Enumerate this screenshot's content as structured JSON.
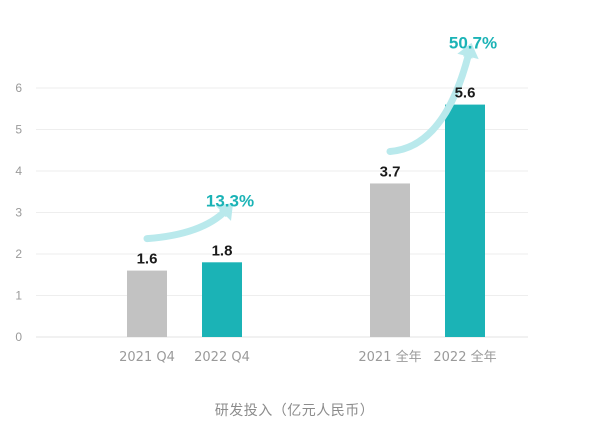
{
  "chart_data": {
    "type": "bar",
    "caption": "研发投入（亿元人民币）",
    "ylim": [
      0,
      6
    ],
    "y_ticks": [
      "0",
      "1",
      "2",
      "3",
      "4",
      "5",
      "6"
    ],
    "grid": true,
    "colors": {
      "previous": "#c2c2c2",
      "current": "#1bb3b6",
      "arrow": "#b9e9ec",
      "pct_text": "#1bb3b6",
      "grid": "#eeeeee",
      "axis_text": "#9a9a9a",
      "value_text": "#1a1a1a"
    },
    "groups": [
      {
        "bars": [
          {
            "category": "2021 Q4",
            "value": 1.6,
            "label": "1.6",
            "series": "previous"
          },
          {
            "category": "2022 Q4",
            "value": 1.8,
            "label": "1.8",
            "series": "current"
          }
        ],
        "growth": "13.3%"
      },
      {
        "bars": [
          {
            "category": "2021 全年",
            "value": 3.7,
            "label": "3.7",
            "series": "previous"
          },
          {
            "category": "2022 全年",
            "value": 5.6,
            "label": "5.6",
            "series": "current"
          }
        ],
        "growth": "50.7%"
      }
    ]
  }
}
